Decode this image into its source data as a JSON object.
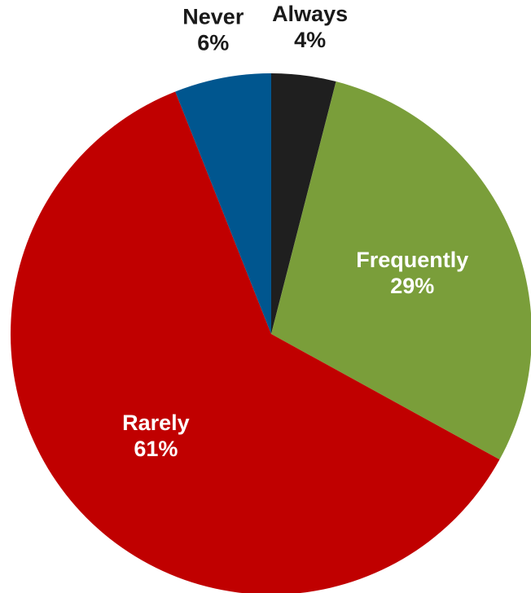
{
  "chart_data": {
    "type": "pie",
    "slices": [
      {
        "label": "Always",
        "value": 4,
        "value_label": "4%",
        "color": "#1f1f1f",
        "label_color": "#1a1a1a",
        "label_position": "outside"
      },
      {
        "label": "Frequently",
        "value": 29,
        "value_label": "29%",
        "color": "#7a9e3a",
        "label_color": "#ffffff",
        "label_position": "inside"
      },
      {
        "label": "Rarely",
        "value": 61,
        "value_label": "61%",
        "color": "#c00000",
        "label_color": "#ffffff",
        "label_position": "inside"
      },
      {
        "label": "Never",
        "value": 6,
        "value_label": "6%",
        "color": "#00568f",
        "label_color": "#1a1a1a",
        "label_position": "outside"
      }
    ],
    "start_angle": "12 o'clock",
    "direction": "clockwise",
    "legend": "none",
    "background": "#ffffff"
  }
}
